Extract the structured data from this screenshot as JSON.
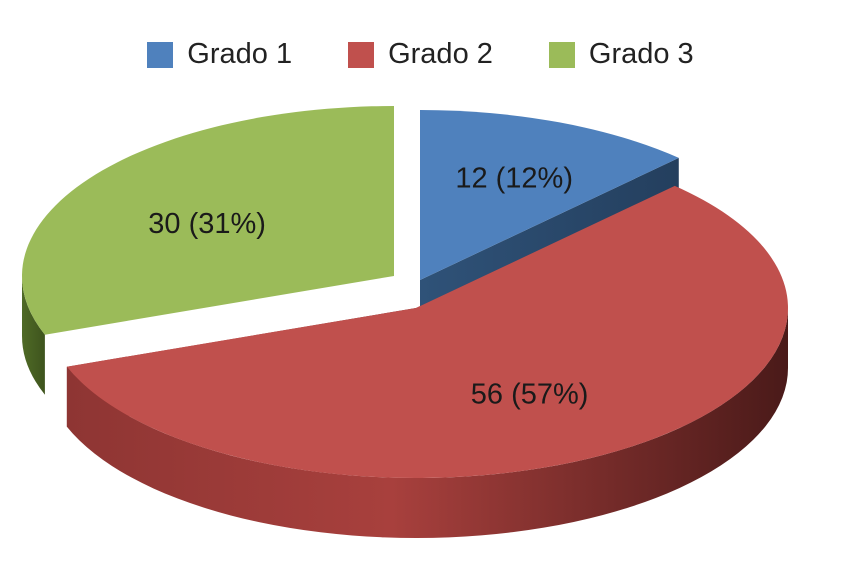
{
  "chart_data": {
    "type": "pie",
    "title": "",
    "legend_position": "top",
    "categories": [
      "Grado 1",
      "Grado 2",
      "Grado 3"
    ],
    "values": [
      12,
      56,
      30
    ],
    "labels": [
      "12 (12%)",
      "56 (57%)",
      "30 (31%)"
    ],
    "colors": [
      "#4f81bd",
      "#c0504d",
      "#9bbb59"
    ],
    "style": "3d-exploded"
  }
}
